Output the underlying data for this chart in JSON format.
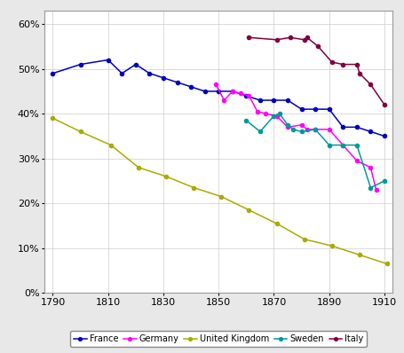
{
  "France": {
    "x": [
      1790,
      1800,
      1810,
      1815,
      1820,
      1825,
      1830,
      1835,
      1840,
      1845,
      1850,
      1855,
      1860,
      1865,
      1870,
      1875,
      1880,
      1885,
      1890,
      1895,
      1900,
      1905,
      1910
    ],
    "y": [
      0.49,
      0.51,
      0.52,
      0.49,
      0.51,
      0.49,
      0.48,
      0.47,
      0.46,
      0.45,
      0.45,
      0.45,
      0.44,
      0.43,
      0.43,
      0.43,
      0.41,
      0.41,
      0.41,
      0.37,
      0.37,
      0.36,
      0.35
    ],
    "color": "#0000BB",
    "marker": "o"
  },
  "Germany": {
    "x": [
      1849,
      1852,
      1855,
      1858,
      1861,
      1864,
      1867,
      1871,
      1875,
      1880,
      1882,
      1885,
      1890,
      1895,
      1900,
      1905,
      1907
    ],
    "y": [
      0.465,
      0.43,
      0.45,
      0.445,
      0.44,
      0.405,
      0.4,
      0.395,
      0.37,
      0.375,
      0.365,
      0.365,
      0.365,
      0.33,
      0.295,
      0.28,
      0.23
    ],
    "color": "#FF00FF",
    "marker": "o"
  },
  "United Kingdom": {
    "x": [
      1790,
      1800,
      1811,
      1821,
      1831,
      1841,
      1851,
      1861,
      1871,
      1881,
      1891,
      1901,
      1911
    ],
    "y": [
      0.39,
      0.36,
      0.33,
      0.28,
      0.26,
      0.235,
      0.215,
      0.185,
      0.155,
      0.12,
      0.105,
      0.085,
      0.065
    ],
    "color": "#AAAA00",
    "marker": "o"
  },
  "Sweden": {
    "x": [
      1860,
      1865,
      1870,
      1872,
      1875,
      1877,
      1880,
      1885,
      1890,
      1895,
      1900,
      1905,
      1910
    ],
    "y": [
      0.385,
      0.36,
      0.395,
      0.4,
      0.375,
      0.365,
      0.36,
      0.365,
      0.33,
      0.33,
      0.33,
      0.235,
      0.25
    ],
    "color": "#009999",
    "marker": "o"
  },
  "Italy": {
    "x": [
      1861,
      1871,
      1876,
      1881,
      1882,
      1886,
      1891,
      1895,
      1900,
      1901,
      1905,
      1910
    ],
    "y": [
      0.57,
      0.565,
      0.57,
      0.565,
      0.57,
      0.55,
      0.515,
      0.51,
      0.51,
      0.49,
      0.465,
      0.42
    ],
    "color": "#800040",
    "marker": "o"
  },
  "xlim": [
    1787,
    1913
  ],
  "ylim": [
    0,
    0.63
  ],
  "xticks": [
    1790,
    1810,
    1830,
    1850,
    1870,
    1890,
    1910
  ],
  "yticks": [
    0.0,
    0.1,
    0.2,
    0.3,
    0.4,
    0.5,
    0.6
  ],
  "outer_bg": "#E8E8E8",
  "plot_bg": "#FFFFFF",
  "border_color": "#999999"
}
